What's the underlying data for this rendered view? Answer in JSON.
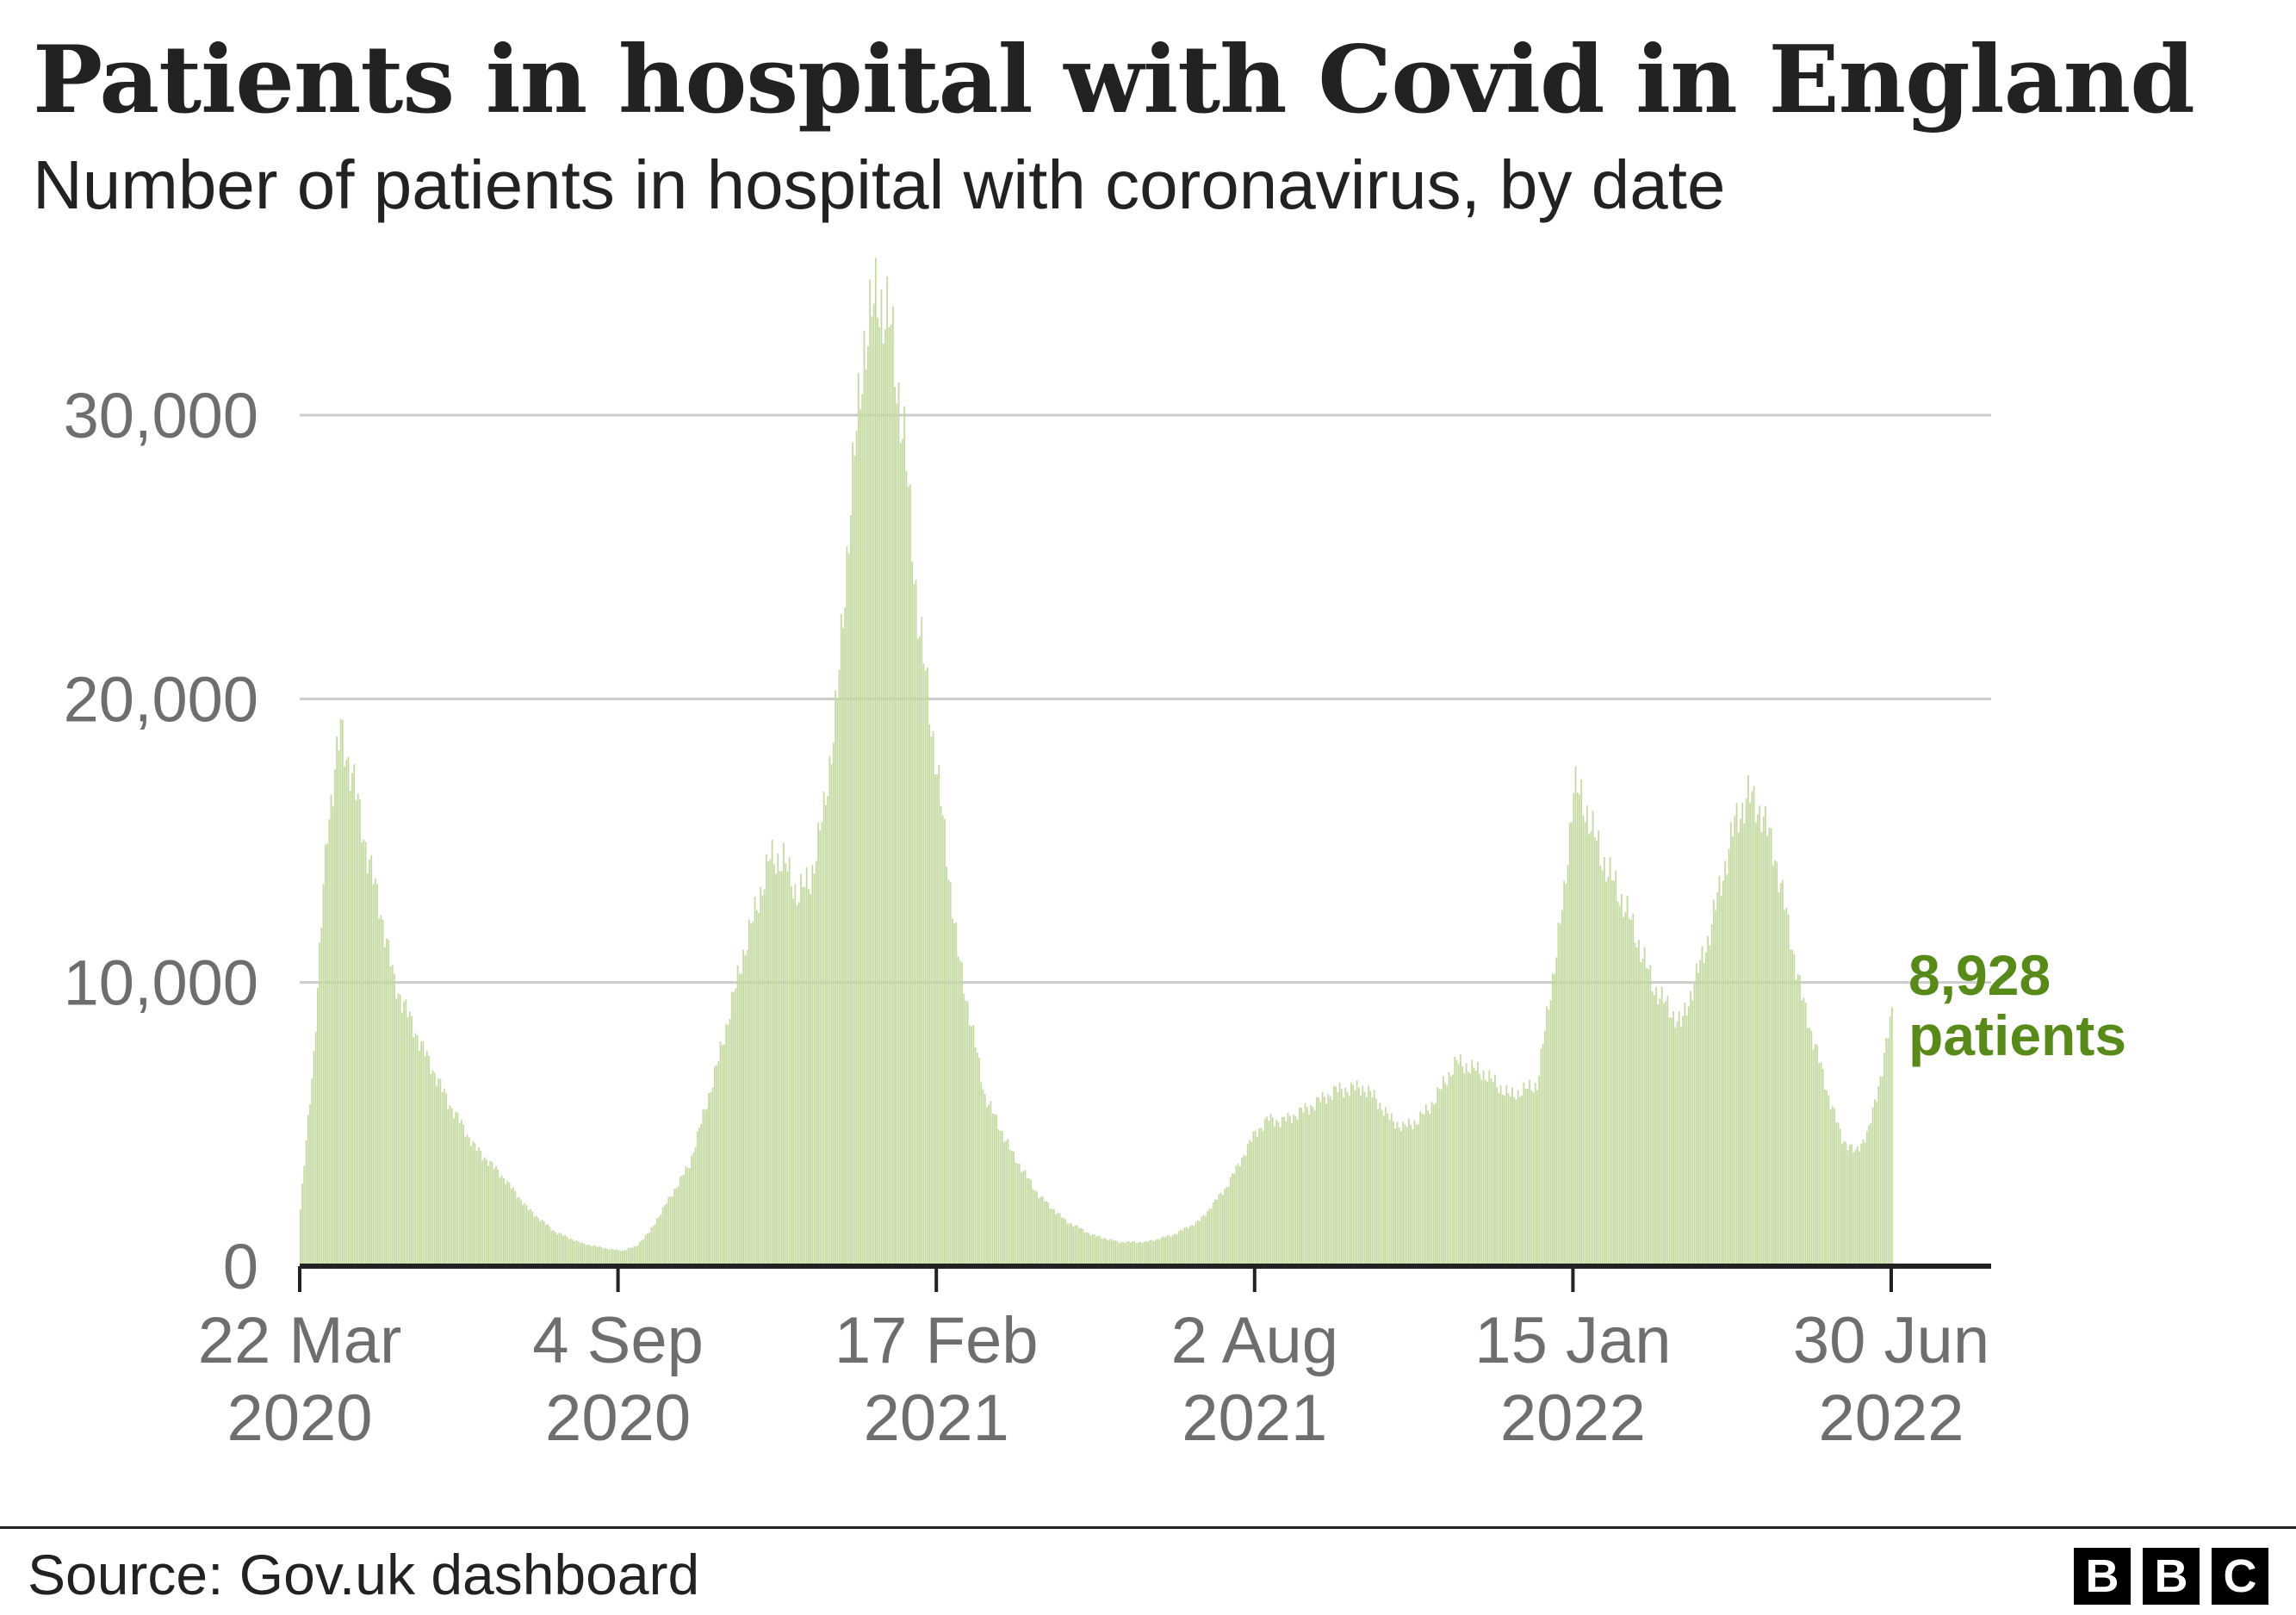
{
  "header": {
    "title": "Patients in hospital with Covid in England",
    "subtitle": "Number of patients in hospital with coronavirus, by date"
  },
  "footer": {
    "source": "Source: Gov.uk dashboard",
    "logo_letters": [
      "B",
      "B",
      "C"
    ]
  },
  "chart_data": {
    "type": "bar",
    "x_start": "2020-03-22",
    "x_end": "2022-06-30",
    "x_tick_labels": [
      {
        "date": "2020-03-22",
        "line1": "22 Mar",
        "line2": "2020"
      },
      {
        "date": "2020-09-04",
        "line1": "4 Sep",
        "line2": "2020"
      },
      {
        "date": "2021-02-17",
        "line1": "17 Feb",
        "line2": "2021"
      },
      {
        "date": "2021-08-02",
        "line1": "2 Aug",
        "line2": "2021"
      },
      {
        "date": "2022-01-15",
        "line1": "15 Jan",
        "line2": "2022"
      },
      {
        "date": "2022-06-30",
        "line1": "30 Jun",
        "line2": "2022"
      }
    ],
    "y_ticks": [
      0,
      10000,
      20000,
      30000
    ],
    "y_tick_labels": [
      "0",
      "10,000",
      "20,000",
      "30,000"
    ],
    "ylim": [
      0,
      35000
    ],
    "grid": true,
    "bar_color": "#c4d99f",
    "series": [
      {
        "points": [
          [
            "2020-03-22",
            2000
          ],
          [
            "2020-03-29",
            7500
          ],
          [
            "2020-04-05",
            15500
          ],
          [
            "2020-04-12",
            18900
          ],
          [
            "2020-04-19",
            17000
          ],
          [
            "2020-04-26",
            14500
          ],
          [
            "2020-05-03",
            12500
          ],
          [
            "2020-05-10",
            10000
          ],
          [
            "2020-05-24",
            7800
          ],
          [
            "2020-06-07",
            5800
          ],
          [
            "2020-06-21",
            4200
          ],
          [
            "2020-07-05",
            3200
          ],
          [
            "2020-07-19",
            2000
          ],
          [
            "2020-08-02",
            1200
          ],
          [
            "2020-08-16",
            800
          ],
          [
            "2020-08-30",
            600
          ],
          [
            "2020-09-06",
            550
          ],
          [
            "2020-09-13",
            700
          ],
          [
            "2020-09-20",
            1200
          ],
          [
            "2020-09-27",
            2000
          ],
          [
            "2020-10-11",
            3600
          ],
          [
            "2020-10-25",
            7000
          ],
          [
            "2020-11-08",
            11000
          ],
          [
            "2020-11-22",
            14400
          ],
          [
            "2020-11-29",
            14300
          ],
          [
            "2020-12-06",
            13100
          ],
          [
            "2020-12-13",
            13600
          ],
          [
            "2020-12-20",
            16000
          ],
          [
            "2020-12-27",
            20000
          ],
          [
            "2021-01-03",
            27000
          ],
          [
            "2021-01-10",
            32500
          ],
          [
            "2021-01-17",
            34300
          ],
          [
            "2021-01-24",
            33000
          ],
          [
            "2021-01-31",
            29000
          ],
          [
            "2021-02-07",
            23000
          ],
          [
            "2021-02-17",
            17500
          ],
          [
            "2021-02-28",
            11000
          ],
          [
            "2021-03-14",
            6000
          ],
          [
            "2021-03-28",
            4000
          ],
          [
            "2021-04-11",
            2500
          ],
          [
            "2021-04-25",
            1600
          ],
          [
            "2021-05-09",
            1100
          ],
          [
            "2021-05-23",
            850
          ],
          [
            "2021-06-06",
            850
          ],
          [
            "2021-06-20",
            1100
          ],
          [
            "2021-07-04",
            1600
          ],
          [
            "2021-07-18",
            2800
          ],
          [
            "2021-08-02",
            4700
          ],
          [
            "2021-08-09",
            5200
          ],
          [
            "2021-08-16",
            5100
          ],
          [
            "2021-08-30",
            5600
          ],
          [
            "2021-09-13",
            6200
          ],
          [
            "2021-09-27",
            6300
          ],
          [
            "2021-10-04",
            5900
          ],
          [
            "2021-10-11",
            5200
          ],
          [
            "2021-10-18",
            4900
          ],
          [
            "2021-10-25",
            5100
          ],
          [
            "2021-11-01",
            5600
          ],
          [
            "2021-11-15",
            7200
          ],
          [
            "2021-11-29",
            6800
          ],
          [
            "2021-12-13",
            6000
          ],
          [
            "2021-12-27",
            6400
          ],
          [
            "2022-01-10",
            13000
          ],
          [
            "2022-01-15",
            17000
          ],
          [
            "2022-01-22",
            16000
          ],
          [
            "2022-01-29",
            14500
          ],
          [
            "2022-02-12",
            12500
          ],
          [
            "2022-02-26",
            9800
          ],
          [
            "2022-03-12",
            8500
          ],
          [
            "2022-03-26",
            11500
          ],
          [
            "2022-04-09",
            15600
          ],
          [
            "2022-04-16",
            16600
          ],
          [
            "2022-04-23",
            16000
          ],
          [
            "2022-04-30",
            14500
          ],
          [
            "2022-05-14",
            9500
          ],
          [
            "2022-05-28",
            6000
          ],
          [
            "2022-06-04",
            4500
          ],
          [
            "2022-06-11",
            4000
          ],
          [
            "2022-06-18",
            4800
          ],
          [
            "2022-06-25",
            7000
          ],
          [
            "2022-06-30",
            8928
          ]
        ]
      }
    ],
    "annotation": {
      "value": "8,928",
      "label": "patients",
      "color": "#588a1a"
    }
  }
}
